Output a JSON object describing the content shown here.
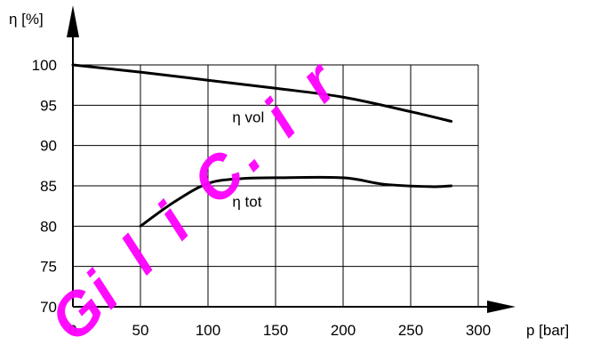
{
  "chart_data": {
    "type": "line",
    "xlabel": "p [bar]",
    "ylabel": "η [%]",
    "xlim": [
      0,
      300
    ],
    "ylim": [
      70,
      100
    ],
    "x_ticks": [
      0,
      50,
      100,
      150,
      200,
      250,
      300
    ],
    "y_ticks": [
      70,
      75,
      80,
      85,
      90,
      95,
      100
    ],
    "grid": true,
    "series": [
      {
        "name": "η vol",
        "x": [
          0,
          50,
          100,
          150,
          200,
          250,
          280
        ],
        "y": [
          100,
          99.1,
          98.1,
          97.1,
          96,
          94.2,
          93
        ]
      },
      {
        "name": "η tot",
        "x": [
          50,
          75,
          100,
          125,
          150,
          200,
          230,
          265,
          280
        ],
        "y": [
          80,
          83,
          85.3,
          85.9,
          86,
          86,
          85.2,
          84.9,
          85
        ]
      }
    ],
    "colors": {
      "line": "#000000",
      "grid": "#000000"
    }
  },
  "watermark": {
    "text": "GiliC.ir",
    "color": "#ff00ff"
  }
}
